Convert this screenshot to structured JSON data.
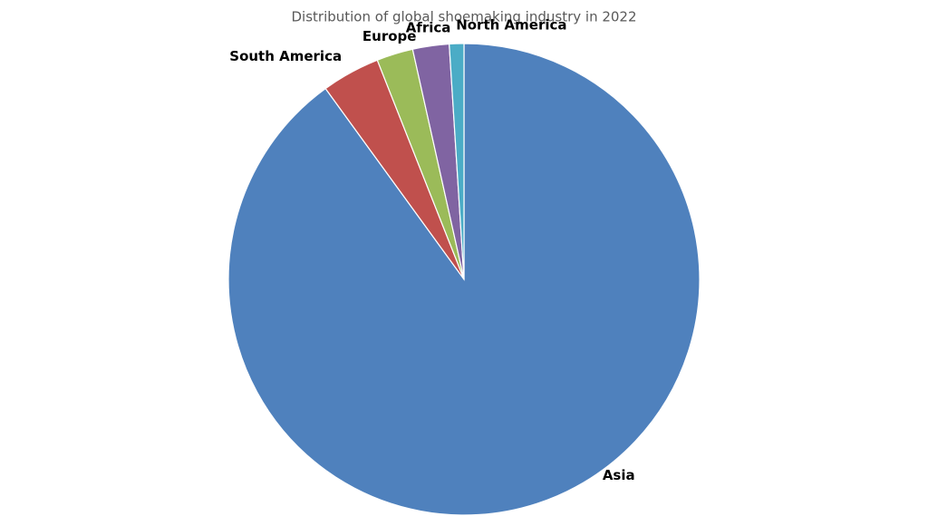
{
  "chart_data": {
    "type": "pie",
    "title": "Distribution of global shoemaking industry in 2022",
    "categories": [
      "Asia",
      "South America",
      "Europe",
      "Africa",
      "North America"
    ],
    "values": [
      90,
      4,
      2.5,
      2.5,
      1
    ],
    "colors": [
      "#4f81bd",
      "#c0504d",
      "#9bbb59",
      "#8064a2",
      "#4bacc6"
    ]
  }
}
